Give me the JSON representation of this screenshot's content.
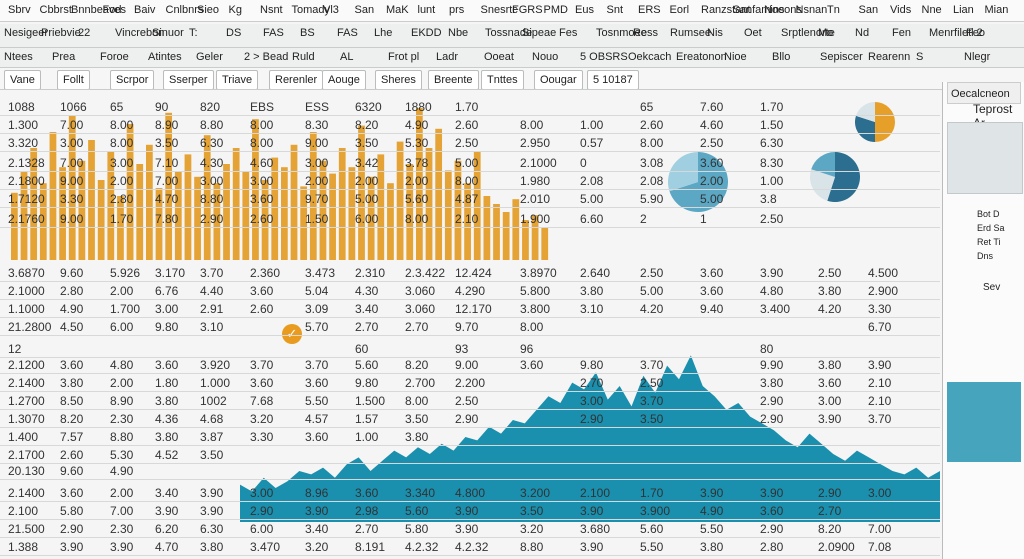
{
  "menu": [
    "Sbrv",
    "Cbbrst",
    "Bnnbeaves",
    "Fod",
    "Baiv",
    "Cnlbnrs",
    "Sieo",
    "Kg",
    "Nsnt",
    "Tomady",
    "Vl3",
    "San",
    "MaK",
    "lunt",
    "prs",
    "Snesrtc",
    "FGRS",
    "PMD",
    "Eus",
    "Snt",
    "ERS",
    "Eorl",
    "Ranzstant",
    "Sanfamins",
    "Noeons",
    "Nsnan",
    "Tn",
    "San",
    "Vids",
    "Nne",
    "Lian",
    "Mian"
  ],
  "toolbar1": [
    "Nesigeer",
    "Priebvie",
    "22",
    "Vincrebon",
    "Sinuor",
    "T:",
    "DS",
    "FAS",
    "BS",
    "FAS",
    "Lhe",
    "EKDD",
    "Nbe",
    "Tossnade",
    "Sipeae",
    "Fes",
    "Tosnmoee",
    "Ress",
    "Rumsee",
    "Nis",
    "Oet",
    "Srptlenorte",
    "Mo",
    "Nd",
    "Fen",
    "Menrfiletl 2",
    "Feo"
  ],
  "toolbar2": [
    "Ntees",
    "Prea",
    "Foroe",
    "Atintes",
    "Geler",
    "2 > Bead",
    "Ruld",
    "AL",
    "Frot pl",
    "Ladr",
    "Ooeat",
    "Nouo",
    "5 OBSRS",
    "Oekcach",
    "Ereatonon",
    "Nioe",
    "Bllo",
    "Sepiscer",
    "Rearenn",
    "S",
    "Nlegr"
  ],
  "toolbar3": [
    "Vane",
    "Follt",
    "Scrpor",
    "Sserper",
    "Triave",
    "Rerenler",
    "Aouge",
    "Sheres",
    "Breente",
    "Tnttes",
    "Oougar",
    "5 10187"
  ],
  "rightpanel": {
    "input": "Oecalcneon",
    "label": "Teprost",
    "label2": "Ar",
    "items": [
      "Bot D",
      "Erd Sa",
      "Ret Ti",
      "Dns"
    ],
    "footer": "Sev"
  },
  "rows": [
    [
      "1088",
      "1066",
      "65",
      "90",
      "820",
      "EBS",
      "ESS",
      "6320",
      "1880",
      "1.70",
      "",
      "",
      "65",
      "7.60",
      "1.70",
      "",
      ""
    ],
    [
      "1.300",
      "7.00",
      "8.00",
      "8.90",
      "8.80",
      "8.00",
      "8.30",
      "8.20",
      "4.90",
      "2.60",
      "8.00",
      "1.00",
      "2.60",
      "4.60",
      "1.50",
      "",
      ""
    ],
    [
      "3.320",
      "3.00",
      "8.00",
      "3.50",
      "6.30",
      "8.00",
      "9.00",
      "3.50",
      "5.30",
      "2.50",
      "2.950",
      "0.57",
      "8.00",
      "2.50",
      "6.30",
      "",
      ""
    ],
    [
      "2.1328",
      "7.00",
      "3.00",
      "7.10",
      "4.30",
      "4.60",
      "3.00",
      "3.42",
      "3.78",
      "5.00",
      "2.1000",
      "0",
      "3.08",
      "3.60",
      "8.30",
      "",
      ""
    ],
    [
      "2.1800",
      "9.00",
      "2.00",
      "7.00",
      "3.00",
      "3.00",
      "2.00",
      "2.00",
      "2.00",
      "8.00",
      "1.980",
      "2.08",
      "2.08",
      "2.00",
      "1.00",
      "",
      ""
    ],
    [
      "1.7120",
      "3.30",
      "2.80",
      "4.70",
      "8.80",
      "3.60",
      "9.70",
      "5.00",
      "5.60",
      "4.87",
      "2.010",
      "5.00",
      "5.90",
      "5.00",
      "3.8",
      "",
      ""
    ],
    [
      "2.1760",
      "9.00",
      "1.70",
      "7.80",
      "2.90",
      "2.60",
      "1.50",
      "6.00",
      "8.00",
      "2.10",
      "1.900",
      "6.60",
      "2",
      "1",
      "2.50",
      "",
      ""
    ],
    [
      "3.6870",
      "9.60",
      "5.926",
      "3.170",
      "3.70",
      "2.360",
      "3.473",
      "2.310",
      "2.3.422",
      "12.424",
      "3.8970",
      "2.640",
      "2.50",
      "3.60",
      "3.90",
      "2.50",
      "4.500"
    ],
    [
      "2.1000",
      "2.80",
      "2.00",
      "6.76",
      "4.40",
      "3.60",
      "5.04",
      "4.30",
      "3.060",
      "4.290",
      "5.800",
      "3.80",
      "5.00",
      "3.60",
      "4.80",
      "3.80",
      "2.900"
    ],
    [
      "1.1000",
      "4.90",
      "1.700",
      "3.00",
      "2.91",
      "2.60",
      "3.09",
      "3.40",
      "3.060",
      "12.170",
      "3.800",
      "3.10",
      "4.20",
      "9.40",
      "3.400",
      "4.20",
      "3.30"
    ],
    [
      "21.2800",
      "4.50",
      "6.00",
      "9.80",
      "3.10",
      "",
      "5.70",
      "2.70",
      "2.70",
      "9.70",
      "8.00",
      "",
      "",
      "",
      "",
      "",
      "6.70"
    ],
    [
      "12",
      "",
      "",
      "",
      "",
      "",
      "",
      "60",
      "",
      "93",
      "96",
      "",
      "",
      "",
      "80",
      "",
      ""
    ],
    [
      "2.1200",
      "3.60",
      "4.80",
      "3.60",
      "3.920",
      "3.70",
      "3.70",
      "5.60",
      "8.20",
      "9.00",
      "3.60",
      "9.80",
      "3.70",
      "",
      "9.90",
      "3.80",
      "3.90"
    ],
    [
      "2.1400",
      "3.80",
      "2.00",
      "1.80",
      "1.000",
      "3.60",
      "3.60",
      "9.80",
      "2.700",
      "2.200",
      "",
      "2.70",
      "2.50",
      "",
      "3.80",
      "3.60",
      "2.10"
    ],
    [
      "1.2700",
      "8.50",
      "8.90",
      "3.80",
      "1002",
      "7.68",
      "5.50",
      "1.500",
      "8.00",
      "2.50",
      "",
      "3.00",
      "3.70",
      "",
      "2.90",
      "3.00",
      "2.10"
    ],
    [
      "1.3070",
      "8.20",
      "2.30",
      "4.36",
      "4.68",
      "3.20",
      "4.57",
      "1.57",
      "3.50",
      "2.90",
      "",
      "2.90",
      "3.50",
      "",
      "2.90",
      "3.90",
      "3.70"
    ],
    [
      "1.400",
      "7.57",
      "8.80",
      "3.80",
      "3.87",
      "3.30",
      "3.60",
      "1.00",
      "3.80",
      "",
      "",
      "",
      "",
      "",
      "",
      "",
      ""
    ],
    [
      "2.1700",
      "2.60",
      "5.30",
      "4.52",
      "3.50",
      "",
      "",
      "",
      "",
      "",
      "",
      "",
      "",
      "",
      "",
      "",
      ""
    ],
    [
      "20.130",
      "9.60",
      "4.90",
      "",
      "",
      "",
      "",
      "",
      "",
      "",
      "",
      "",
      "",
      "",
      "",
      "",
      ""
    ],
    [
      "2.1400",
      "3.60",
      "2.00",
      "3.40",
      "3.90",
      "3.00",
      "8.96",
      "3.60",
      "3.340",
      "4.800",
      "3.200",
      "2.100",
      "1.70",
      "3.90",
      "3.90",
      "2.90",
      "3.00"
    ],
    [
      "2.100",
      "5.80",
      "7.00",
      "3.90",
      "3.90",
      "2.90",
      "3.90",
      "2.98",
      "5.60",
      "3.90",
      "3.50",
      "3.90",
      "3.900",
      "4.90",
      "3.60",
      "2.70",
      ""
    ],
    [
      "21.500",
      "2.90",
      "2.30",
      "6.20",
      "6.30",
      "6.00",
      "3.40",
      "2.70",
      "5.80",
      "3.90",
      "3.20",
      "3.680",
      "5.60",
      "5.50",
      "2.90",
      "8.20",
      "7.00"
    ],
    [
      "1.388",
      "3.90",
      "3.90",
      "4.70",
      "3.80",
      "3.470",
      "3.20",
      "8.191",
      "4.2.32",
      "4.2.32",
      "8.80",
      "3.90",
      "5.50",
      "3.80",
      "2.80",
      "2.0900",
      "7.08"
    ]
  ],
  "colors": {
    "bar": "#e29a1f",
    "area": "#1a8fae",
    "pie1": "#5ba7c4",
    "pie2": "#e6a02a",
    "accent": "#2c6e8f"
  },
  "chart_data": [
    {
      "type": "bar",
      "values": [
        42,
        55,
        70,
        48,
        80,
        58,
        90,
        62,
        75,
        50,
        68,
        40,
        85,
        60,
        72,
        45,
        92,
        55,
        66,
        52,
        78,
        48,
        60,
        70,
        55,
        88,
        50,
        64,
        58,
        72,
        46,
        80,
        62,
        54,
        70,
        58,
        84,
        52,
        66,
        48,
        74,
        60,
        95,
        70,
        82,
        56,
        62,
        48,
        68,
        40,
        35,
        30,
        38,
        25,
        28,
        20
      ],
      "ylim": [
        0,
        100
      ]
    },
    {
      "type": "area",
      "values": [
        22,
        18,
        26,
        20,
        24,
        30,
        28,
        32,
        26,
        34,
        38,
        30,
        36,
        42,
        38,
        44,
        40,
        46,
        42,
        50,
        48,
        56,
        52,
        60,
        58,
        66,
        74,
        70,
        82,
        78,
        88,
        72,
        80,
        68,
        86,
        76,
        92,
        84,
        98,
        80,
        74,
        66,
        70,
        62,
        58,
        54,
        48,
        44,
        52,
        46,
        40,
        36,
        42,
        38,
        34,
        30,
        28,
        32,
        26,
        30
      ],
      "ylim": [
        0,
        100
      ]
    }
  ]
}
